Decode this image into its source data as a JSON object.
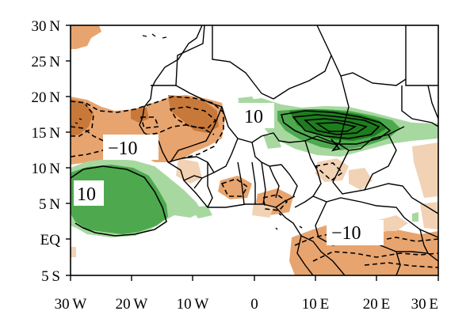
{
  "map": {
    "y_ticks": [
      "30 N",
      "25 N",
      "20 N",
      "15 N",
      "10 N",
      "5 N",
      "EQ",
      "5 S"
    ],
    "x_ticks": [
      "30 W",
      "20 W",
      "10 W",
      "0",
      "10 E",
      "20 E",
      "30 E"
    ],
    "contour_labels": [
      "10",
      "−10",
      "10",
      "−10"
    ],
    "lon_range": [
      -30,
      30
    ],
    "lat_range": [
      -5,
      30
    ],
    "colors": {
      "positive_strong": "#1e7d1e",
      "positive_mid": "#4ea94e",
      "positive_light": "#a7d8a0",
      "negative_strong": "#c8793a",
      "negative_mid": "#e8a46e",
      "negative_light": "#f2d2b4",
      "land_lines": "#000000"
    }
  }
}
